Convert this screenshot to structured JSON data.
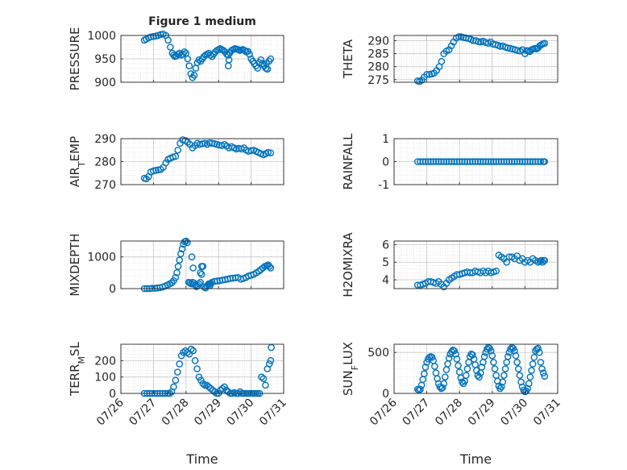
{
  "figure": {
    "title": "Figure 1 medium",
    "marker_color": "#0072BD"
  },
  "chart_data": [
    {
      "type": "scatter",
      "ylabel": "PRESSURE",
      "ylabel_sub": "",
      "ylim": [
        900,
        1000
      ],
      "yticks": [
        900,
        950,
        1000
      ],
      "ytick_labels": [
        "900",
        "950",
        "1000"
      ],
      "xlim": [
        0,
        5
      ],
      "xticks": [
        0,
        1,
        2,
        3,
        4,
        5
      ],
      "grid": true,
      "minor_grid": true,
      "show_x_ticklabels": false,
      "xlabel": "",
      "x": [
        0.72,
        0.78,
        0.85,
        0.92,
        1.0,
        1.08,
        1.15,
        1.22,
        1.3,
        1.38,
        1.45,
        1.52,
        1.58,
        1.62,
        1.66,
        1.7,
        1.75,
        1.8,
        1.85,
        1.9,
        1.95,
        2.0,
        2.05,
        2.1,
        2.15,
        2.2,
        2.25,
        2.3,
        2.35,
        2.4,
        2.45,
        2.5,
        2.55,
        2.6,
        2.65,
        2.7,
        2.75,
        2.8,
        2.85,
        2.9,
        2.95,
        3.0,
        3.05,
        3.1,
        3.15,
        3.2,
        3.25,
        3.3,
        3.35,
        3.4,
        3.45,
        3.5,
        3.55,
        3.6,
        3.65,
        3.7,
        3.75,
        3.8,
        3.85,
        3.9,
        3.95,
        4.0,
        4.05,
        4.1,
        4.15,
        4.2,
        4.25,
        4.3,
        4.35,
        4.4,
        4.45,
        4.5,
        4.55,
        4.6,
        3.3,
        3.32,
        4.47,
        4.5
      ],
      "y": [
        990,
        992,
        995,
        997,
        998,
        999,
        1000,
        1002,
        1003,
        1000,
        990,
        975,
        962,
        958,
        955,
        956,
        960,
        962,
        958,
        960,
        965,
        962,
        950,
        935,
        918,
        910,
        915,
        930,
        942,
        948,
        945,
        950,
        955,
        958,
        960,
        962,
        958,
        955,
        960,
        965,
        968,
        970,
        972,
        970,
        968,
        965,
        960,
        958,
        963,
        968,
        970,
        972,
        971,
        970,
        968,
        969,
        970,
        968,
        965,
        966,
        960,
        950,
        945,
        940,
        935,
        930,
        942,
        948,
        940,
        935,
        930,
        928,
        945,
        950,
        935,
        948,
        940,
        928
      ]
    },
    {
      "type": "scatter",
      "ylabel": "THETA",
      "ylabel_sub": "",
      "ylim": [
        274,
        292
      ],
      "yticks": [
        275,
        280,
        285,
        290
      ],
      "ytick_labels": [
        "275",
        "280",
        "285",
        "290"
      ],
      "xlim": [
        0,
        5
      ],
      "xticks": [
        0,
        1,
        2,
        3,
        4,
        5
      ],
      "grid": true,
      "minor_grid": true,
      "show_x_ticklabels": false,
      "xlabel": "",
      "x": [
        0.72,
        0.78,
        0.85,
        0.92,
        1.0,
        1.08,
        1.15,
        1.22,
        1.3,
        1.38,
        1.45,
        1.52,
        1.6,
        1.68,
        1.75,
        1.82,
        1.9,
        1.98,
        2.05,
        2.12,
        2.2,
        2.28,
        2.35,
        2.42,
        2.5,
        2.58,
        2.65,
        2.72,
        2.8,
        2.88,
        2.95,
        3.02,
        3.1,
        3.18,
        3.25,
        3.32,
        3.4,
        3.48,
        3.55,
        3.62,
        3.7,
        3.78,
        3.85,
        3.92,
        4.0,
        4.05,
        4.1,
        4.15,
        4.2,
        4.25,
        4.3,
        4.35,
        4.4,
        4.45,
        4.5,
        4.55,
        4.6
      ],
      "y": [
        274.5,
        274.3,
        274.8,
        276,
        277,
        277,
        277.2,
        277.5,
        278.5,
        280,
        282,
        285,
        286,
        286.5,
        288,
        289.5,
        291,
        291.5,
        291.5,
        291.2,
        291,
        290.8,
        290.5,
        290,
        290,
        289.6,
        289.5,
        289.8,
        289.3,
        289,
        289.5,
        288.7,
        288.5,
        288.2,
        287.8,
        288,
        287.5,
        287.2,
        287,
        286.8,
        286.5,
        286.2,
        286,
        286.5,
        285,
        286.2,
        286,
        285.8,
        286.5,
        286.8,
        287,
        286.8,
        287.2,
        288,
        288.4,
        288.8,
        289
      ]
    },
    {
      "type": "scatter",
      "ylabel": "AIR",
      "ylabel_sub": "T",
      "ylabel_rest": "EMP",
      "ylim": [
        270,
        290
      ],
      "yticks": [
        270,
        280,
        290
      ],
      "ytick_labels": [
        "270",
        "280",
        "290"
      ],
      "xlim": [
        0,
        5
      ],
      "xticks": [
        0,
        1,
        2,
        3,
        4,
        5
      ],
      "grid": true,
      "minor_grid": true,
      "show_x_ticklabels": false,
      "xlabel": "",
      "x": [
        0.72,
        0.78,
        0.85,
        0.92,
        1.0,
        1.08,
        1.15,
        1.22,
        1.3,
        1.38,
        1.45,
        1.52,
        1.6,
        1.68,
        1.75,
        1.82,
        1.9,
        1.98,
        2.05,
        2.12,
        2.2,
        2.28,
        2.35,
        2.42,
        2.5,
        2.58,
        2.65,
        2.72,
        2.8,
        2.88,
        2.95,
        3.02,
        3.1,
        3.18,
        3.25,
        3.32,
        3.4,
        3.48,
        3.55,
        3.62,
        3.7,
        3.78,
        3.85,
        3.92,
        4.0,
        4.08,
        4.15,
        4.22,
        4.3,
        4.38,
        4.45,
        4.52,
        4.6
      ],
      "y": [
        272.8,
        272.5,
        273.5,
        275.5,
        276,
        276.2,
        276.4,
        276.6,
        277.5,
        279.5,
        281,
        281.5,
        282,
        282.3,
        285,
        288,
        289.5,
        289.2,
        288.5,
        287.5,
        286,
        287,
        288,
        287.5,
        287.8,
        288,
        287.5,
        288.2,
        288,
        287.8,
        287.5,
        287.2,
        287,
        287.5,
        286.8,
        286,
        286.5,
        286,
        285.5,
        285.8,
        285.5,
        286,
        285,
        284.5,
        284.8,
        285,
        284.5,
        284,
        283.5,
        283,
        283.5,
        284,
        283.8
      ]
    },
    {
      "type": "scatter",
      "ylabel": "RAINFALL",
      "ylabel_sub": "",
      "ylim": [
        -1,
        1
      ],
      "yticks": [
        -1,
        0,
        1
      ],
      "ytick_labels": [
        "-1",
        "0",
        "1"
      ],
      "xlim": [
        0,
        5
      ],
      "xticks": [
        0,
        1,
        2,
        3,
        4,
        5
      ],
      "grid": true,
      "minor_grid": true,
      "show_x_ticklabels": false,
      "xlabel": "",
      "x": [
        0.72,
        0.8,
        0.88,
        0.96,
        1.04,
        1.12,
        1.2,
        1.28,
        1.36,
        1.44,
        1.52,
        1.6,
        1.68,
        1.76,
        1.84,
        1.92,
        2.0,
        2.08,
        2.16,
        2.24,
        2.32,
        2.4,
        2.48,
        2.56,
        2.64,
        2.72,
        2.8,
        2.88,
        2.96,
        3.04,
        3.12,
        3.2,
        3.28,
        3.36,
        3.44,
        3.52,
        3.6,
        3.68,
        3.76,
        3.84,
        3.92,
        4.0,
        4.08,
        4.16,
        4.24,
        4.32,
        4.4,
        4.48,
        4.56,
        4.6
      ],
      "y": [
        0,
        0,
        0,
        0,
        0,
        0,
        0,
        0,
        0,
        0,
        0,
        0,
        0,
        0,
        0,
        0,
        0,
        0,
        0,
        0,
        0,
        0,
        0,
        0,
        0,
        0,
        0,
        0,
        0,
        0,
        0,
        0,
        0,
        0,
        0,
        0,
        0,
        0,
        0,
        0,
        0,
        0,
        0,
        0,
        0,
        0,
        0,
        0,
        0,
        0
      ]
    },
    {
      "type": "scatter",
      "ylabel": "MIXDEPTH",
      "ylabel_sub": "",
      "ylim": [
        0,
        1500
      ],
      "yticks": [
        0,
        1000
      ],
      "ytick_labels": [
        "0",
        "1000"
      ],
      "xlim": [
        0,
        5
      ],
      "xticks": [
        0,
        1,
        2,
        3,
        4,
        5
      ],
      "grid": true,
      "minor_grid": true,
      "show_x_ticklabels": false,
      "xlabel": "",
      "x": [
        0.72,
        0.8,
        0.88,
        0.96,
        1.04,
        1.12,
        1.2,
        1.28,
        1.36,
        1.44,
        1.5,
        1.56,
        1.62,
        1.68,
        1.72,
        1.76,
        1.8,
        1.84,
        1.88,
        1.92,
        1.96,
        2.0,
        2.04,
        2.08,
        2.12,
        2.16,
        2.2,
        2.24,
        2.28,
        2.32,
        2.36,
        2.4,
        2.44,
        2.48,
        2.52,
        2.56,
        2.6,
        2.64,
        2.68,
        2.72,
        2.76,
        2.8,
        2.88,
        2.96,
        3.04,
        3.12,
        3.2,
        3.28,
        3.36,
        3.44,
        3.52,
        3.6,
        3.68,
        3.76,
        3.84,
        3.92,
        4.0,
        4.08,
        4.16,
        4.24,
        4.3,
        4.36,
        4.42,
        4.48,
        4.52,
        4.56,
        4.6,
        2.18,
        2.22,
        2.44,
        2.48,
        2.7,
        2.74
      ],
      "y": [
        0,
        0,
        0,
        10,
        10,
        20,
        30,
        50,
        80,
        120,
        150,
        180,
        250,
        350,
        500,
        700,
        900,
        1100,
        1250,
        1400,
        1480,
        1500,
        1450,
        200,
        180,
        150,
        200,
        180,
        120,
        60,
        100,
        150,
        200,
        450,
        700,
        50,
        20,
        80,
        120,
        150,
        160,
        200,
        230,
        240,
        250,
        270,
        280,
        300,
        320,
        330,
        340,
        350,
        300,
        320,
        350,
        400,
        420,
        450,
        500,
        550,
        600,
        650,
        700,
        720,
        750,
        700,
        650,
        1000,
        650,
        500,
        700,
        150,
        100
      ]
    },
    {
      "type": "scatter",
      "ylabel": "H2OMIXRA",
      "ylabel_sub": "",
      "ylim": [
        3.5,
        6.2
      ],
      "yticks": [
        4,
        5,
        6
      ],
      "ytick_labels": [
        "4",
        "5",
        "6"
      ],
      "xlim": [
        0,
        5
      ],
      "xticks": [
        0,
        1,
        2,
        3,
        4,
        5
      ],
      "grid": true,
      "minor_grid": true,
      "show_x_ticklabels": false,
      "xlabel": "",
      "x": [
        0.72,
        0.8,
        0.88,
        0.96,
        1.04,
        1.12,
        1.2,
        1.28,
        1.36,
        1.44,
        1.52,
        1.6,
        1.68,
        1.76,
        1.84,
        1.92,
        2.0,
        2.08,
        2.16,
        2.24,
        2.32,
        2.4,
        2.48,
        2.56,
        2.64,
        2.72,
        2.8,
        2.88,
        2.96,
        3.04,
        3.12,
        3.2,
        3.28,
        3.36,
        3.44,
        3.52,
        3.6,
        3.68,
        3.76,
        3.84,
        3.92,
        4.0,
        4.08,
        4.16,
        4.24,
        4.32,
        4.4,
        4.46,
        4.5,
        4.54,
        4.58,
        4.6
      ],
      "y": [
        3.7,
        3.7,
        3.75,
        3.8,
        3.9,
        3.9,
        3.85,
        3.8,
        3.9,
        3.75,
        3.6,
        3.8,
        4.0,
        4.1,
        4.2,
        4.3,
        4.3,
        4.35,
        4.4,
        4.45,
        4.4,
        4.4,
        4.5,
        4.45,
        4.4,
        4.5,
        4.4,
        4.5,
        4.4,
        4.45,
        4.5,
        5.4,
        5.3,
        5.2,
        5.0,
        5.3,
        5.3,
        5.2,
        5.35,
        5.1,
        5.2,
        5.0,
        5.1,
        5.0,
        5.2,
        5.1,
        5.0,
        5.05,
        5.1,
        5.0,
        5.1,
        5.1
      ]
    },
    {
      "type": "scatter",
      "ylabel": "TERR",
      "ylabel_sub": "M",
      "ylabel_rest": "SL",
      "ylim": [
        0,
        300
      ],
      "yticks": [
        0,
        100,
        200
      ],
      "ytick_labels": [
        "0",
        "100",
        "200"
      ],
      "xlim": [
        0,
        5
      ],
      "xticks": [
        0,
        1,
        2,
        3,
        4,
        5
      ],
      "xtick_labels": [
        "07/26",
        "07/27",
        "07/28",
        "07/29",
        "07/30",
        "07/31"
      ],
      "grid": true,
      "minor_grid": true,
      "show_x_ticklabels": true,
      "xlabel": "Time",
      "x": [
        0.72,
        0.8,
        0.88,
        0.96,
        1.04,
        1.12,
        1.2,
        1.28,
        1.36,
        1.44,
        1.5,
        1.56,
        1.62,
        1.68,
        1.74,
        1.8,
        1.86,
        1.92,
        1.98,
        2.04,
        2.1,
        2.16,
        2.22,
        2.28,
        2.34,
        2.4,
        2.46,
        2.52,
        2.58,
        2.64,
        2.7,
        2.76,
        2.82,
        2.88,
        2.94,
        3.0,
        3.06,
        3.12,
        3.18,
        3.24,
        3.3,
        3.36,
        3.42,
        3.48,
        3.54,
        3.6,
        3.66,
        3.72,
        3.78,
        3.84,
        3.9,
        3.96,
        4.02,
        4.08,
        4.14,
        4.2,
        4.26,
        4.32,
        4.38,
        4.44,
        4.5,
        4.56,
        4.6,
        4.62
      ],
      "y": [
        0,
        0,
        0,
        0,
        0,
        0,
        0,
        0,
        0,
        0,
        0,
        10,
        40,
        80,
        130,
        180,
        230,
        250,
        260,
        250,
        240,
        270,
        260,
        200,
        150,
        100,
        80,
        60,
        50,
        50,
        40,
        30,
        20,
        10,
        0,
        0,
        20,
        30,
        40,
        20,
        10,
        0,
        0,
        5,
        0,
        0,
        10,
        0,
        0,
        0,
        0,
        0,
        0,
        0,
        0,
        0,
        0,
        100,
        90,
        50,
        150,
        180,
        200,
        280
      ]
    },
    {
      "type": "scatter",
      "ylabel": "SUN",
      "ylabel_sub": "F",
      "ylabel_rest": "LUX",
      "ylim": [
        0,
        600
      ],
      "yticks": [
        0,
        500
      ],
      "ytick_labels": [
        "0",
        "500"
      ],
      "xlim": [
        0,
        5
      ],
      "xticks": [
        0,
        1,
        2,
        3,
        4,
        5
      ],
      "xtick_labels": [
        "07/26",
        "07/27",
        "07/28",
        "07/29",
        "07/30",
        "07/31"
      ],
      "grid": true,
      "minor_grid": true,
      "show_x_ticklabels": true,
      "xlabel": "Time",
      "x": [
        0.72,
        0.76,
        0.8,
        0.84,
        0.88,
        0.92,
        0.96,
        1.0,
        1.04,
        1.08,
        1.12,
        1.16,
        1.2,
        1.24,
        1.28,
        1.32,
        1.36,
        1.4,
        1.44,
        1.48,
        1.52,
        1.56,
        1.6,
        1.64,
        1.68,
        1.72,
        1.76,
        1.8,
        1.84,
        1.88,
        1.92,
        1.96,
        2.0,
        2.04,
        2.08,
        2.12,
        2.16,
        2.2,
        2.24,
        2.28,
        2.32,
        2.36,
        2.4,
        2.44,
        2.48,
        2.52,
        2.56,
        2.6,
        2.64,
        2.68,
        2.72,
        2.76,
        2.8,
        2.84,
        2.88,
        2.92,
        2.96,
        3.0,
        3.04,
        3.08,
        3.12,
        3.16,
        3.2,
        3.24,
        3.28,
        3.32,
        3.36,
        3.4,
        3.44,
        3.48,
        3.52,
        3.56,
        3.6,
        3.64,
        3.68,
        3.72,
        3.76,
        3.8,
        3.84,
        3.88,
        3.92,
        3.96,
        4.0,
        4.04,
        4.08,
        4.12,
        4.16,
        4.2,
        4.24,
        4.28,
        4.32,
        4.36,
        4.4,
        4.44,
        4.48,
        4.52,
        4.56,
        4.6
      ],
      "y": [
        50,
        40,
        50,
        100,
        170,
        240,
        320,
        380,
        420,
        440,
        450,
        440,
        400,
        330,
        250,
        180,
        120,
        80,
        60,
        70,
        120,
        200,
        290,
        360,
        430,
        480,
        510,
        530,
        520,
        480,
        420,
        340,
        260,
        190,
        140,
        120,
        150,
        220,
        300,
        380,
        450,
        480,
        470,
        420,
        350,
        280,
        220,
        200,
        250,
        320,
        380,
        450,
        500,
        540,
        560,
        550,
        520,
        460,
        380,
        300,
        220,
        150,
        90,
        60,
        80,
        140,
        220,
        300,
        380,
        450,
        500,
        540,
        560,
        550,
        520,
        460,
        380,
        300,
        220,
        140,
        80,
        40,
        20,
        30,
        60,
        120,
        200,
        280,
        360,
        440,
        520,
        540,
        550,
        500,
        380,
        300,
        250,
        210
      ]
    }
  ]
}
